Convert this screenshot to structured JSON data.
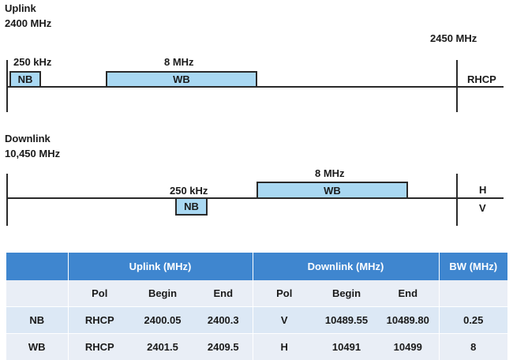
{
  "uplink": {
    "title": "Uplink",
    "start_freq": "2400 MHz",
    "end_freq": "2450 MHz",
    "nb_bw": "250 kHz",
    "wb_bw": "8 MHz",
    "nb_label": "NB",
    "wb_label": "WB",
    "pol": "RHCP"
  },
  "downlink": {
    "title": "Downlink",
    "start_freq": "10,450 MHz",
    "nb_bw": "250 kHz",
    "wb_bw": "8 MHz",
    "nb_label": "NB",
    "wb_label": "WB",
    "pol_top": "H",
    "pol_bottom": "V"
  },
  "table": {
    "group_headers": [
      "Uplink (MHz)",
      "Downlink (MHz)",
      "BW (MHz)"
    ],
    "sub_headers": [
      "Pol",
      "Begin",
      "End",
      "Pol",
      "Begin",
      "End"
    ],
    "rows": [
      {
        "name": "NB",
        "ul_pol": "RHCP",
        "ul_begin": "2400.05",
        "ul_end": "2400.3",
        "dl_pol": "V",
        "dl_begin": "10489.55",
        "dl_end": "10489.80",
        "bw": "0.25"
      },
      {
        "name": "WB",
        "ul_pol": "RHCP",
        "ul_begin": "2401.5",
        "ul_end": "2409.5",
        "dl_pol": "H",
        "dl_begin": "10491",
        "dl_end": "10499",
        "bw": "8"
      }
    ]
  },
  "colors": {
    "band_fill": "#a9d8f2",
    "header_blue": "#3f86cf",
    "row_light": "#e9eef6",
    "row_mid": "#dce8f5"
  }
}
